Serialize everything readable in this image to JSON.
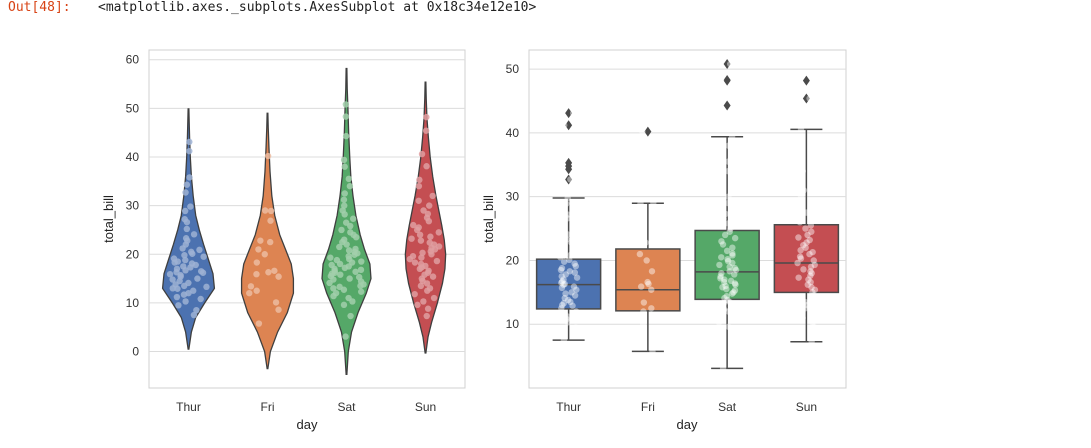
{
  "cell": {
    "prompt": "Out[48]:",
    "repr": "<matplotlib.axes._subplots.AxesSubplot at 0x18c34e12e10>"
  },
  "chart_data": [
    {
      "type": "violin",
      "title": "",
      "xlabel": "day",
      "ylabel": "total_bill",
      "categories": [
        "Thur",
        "Fri",
        "Sat",
        "Sun"
      ],
      "colors": [
        "#4c72b0",
        "#dd8452",
        "#55a868",
        "#c44e52"
      ],
      "ylim": [
        -7.5,
        62
      ],
      "yticks": [
        0,
        10,
        20,
        30,
        40,
        50,
        60
      ],
      "violins": [
        {
          "name": "Thur",
          "min": 0.5,
          "max": 49.9,
          "density": [
            [
              0.5,
              0.01
            ],
            [
              4,
              0.08
            ],
            [
              7,
              0.2
            ],
            [
              10,
              0.45
            ],
            [
              13,
              0.72
            ],
            [
              16,
              0.68
            ],
            [
              19,
              0.55
            ],
            [
              22,
              0.42
            ],
            [
              25,
              0.3
            ],
            [
              28,
              0.2
            ],
            [
              32,
              0.13
            ],
            [
              36,
              0.08
            ],
            [
              40,
              0.05
            ],
            [
              44,
              0.03
            ],
            [
              49.9,
              0.01
            ]
          ]
        },
        {
          "name": "Fri",
          "min": -3.5,
          "max": 49.0,
          "density": [
            [
              -3.5,
              0.01
            ],
            [
              0,
              0.08
            ],
            [
              4,
              0.28
            ],
            [
              8,
              0.55
            ],
            [
              12,
              0.72
            ],
            [
              15,
              0.72
            ],
            [
              18,
              0.66
            ],
            [
              21,
              0.5
            ],
            [
              24,
              0.34
            ],
            [
              28,
              0.2
            ],
            [
              32,
              0.12
            ],
            [
              37,
              0.07
            ],
            [
              42,
              0.04
            ],
            [
              46,
              0.02
            ],
            [
              49,
              0.01
            ]
          ]
        },
        {
          "name": "Sat",
          "min": -4.7,
          "max": 58.2,
          "density": [
            [
              -4.7,
              0.01
            ],
            [
              0,
              0.05
            ],
            [
              4,
              0.14
            ],
            [
              8,
              0.32
            ],
            [
              12,
              0.55
            ],
            [
              15,
              0.68
            ],
            [
              18,
              0.65
            ],
            [
              21,
              0.5
            ],
            [
              24,
              0.38
            ],
            [
              28,
              0.26
            ],
            [
              32,
              0.18
            ],
            [
              36,
              0.12
            ],
            [
              40,
              0.09
            ],
            [
              45,
              0.06
            ],
            [
              50,
              0.04
            ],
            [
              54,
              0.02
            ],
            [
              58.2,
              0.01
            ]
          ]
        },
        {
          "name": "Sun",
          "min": -0.3,
          "max": 55.4,
          "density": [
            [
              -0.3,
              0.01
            ],
            [
              3,
              0.07
            ],
            [
              6,
              0.17
            ],
            [
              10,
              0.33
            ],
            [
              14,
              0.47
            ],
            [
              17,
              0.54
            ],
            [
              20,
              0.56
            ],
            [
              23,
              0.52
            ],
            [
              26,
              0.45
            ],
            [
              29,
              0.37
            ],
            [
              32,
              0.29
            ],
            [
              36,
              0.2
            ],
            [
              40,
              0.13
            ],
            [
              44,
              0.08
            ],
            [
              48,
              0.04
            ],
            [
              52,
              0.02
            ],
            [
              55.4,
              0.01
            ]
          ]
        }
      ],
      "points": {
        "Thur": [
          7.5,
          8.5,
          9.5,
          10.3,
          10.8,
          11.2,
          11.7,
          12.0,
          12.5,
          12.9,
          13.0,
          13.3,
          13.5,
          13.8,
          14.1,
          14.5,
          14.8,
          15.0,
          15.4,
          15.7,
          15.9,
          16.2,
          16.3,
          16.5,
          16.7,
          17.0,
          17.3,
          17.5,
          17.8,
          18.1,
          18.3,
          18.5,
          18.8,
          19.1,
          19.5,
          19.8,
          20.1,
          20.5,
          20.9,
          21.2,
          22.0,
          22.8,
          23.3,
          24.1,
          25.2,
          26.6,
          27.2,
          28.9,
          29.8,
          32.7,
          34.3,
          35.8,
          41.2,
          43.1
        ],
        "Fri": [
          5.75,
          8.6,
          10.1,
          12.0,
          12.5,
          13.4,
          15.4,
          15.9,
          16.3,
          16.6,
          18.3,
          20.0,
          21.0,
          22.5,
          22.8,
          26.9,
          28.9,
          29.0,
          40.2
        ],
        "Sat": [
          3.07,
          7.3,
          9.6,
          10.3,
          11.0,
          11.4,
          12.0,
          12.3,
          12.7,
          13.0,
          13.3,
          13.5,
          13.8,
          14.1,
          14.4,
          14.8,
          15.0,
          15.3,
          15.5,
          15.8,
          16.0,
          16.2,
          16.4,
          16.6,
          16.8,
          17.0,
          17.2,
          17.5,
          17.8,
          18.0,
          18.3,
          18.5,
          18.8,
          19.0,
          19.3,
          19.6,
          19.9,
          20.2,
          20.5,
          20.8,
          21.1,
          21.5,
          22.0,
          22.5,
          23.0,
          23.5,
          24.0,
          24.5,
          25.0,
          25.8,
          26.5,
          27.3,
          28.2,
          29.0,
          30.0,
          31.2,
          32.5,
          34.0,
          35.5,
          38.0,
          39.4,
          44.3,
          48.3,
          50.8
        ],
        "Sun": [
          7.3,
          8.8,
          9.6,
          10.3,
          11.0,
          11.8,
          12.5,
          13.0,
          13.5,
          14.0,
          14.5,
          15.0,
          15.4,
          15.8,
          16.2,
          16.6,
          17.0,
          17.3,
          17.6,
          18.0,
          18.3,
          18.6,
          19.0,
          19.3,
          19.6,
          20.0,
          20.3,
          20.6,
          21.0,
          21.3,
          21.6,
          22.0,
          22.4,
          22.8,
          23.2,
          23.6,
          24.0,
          24.5,
          25.0,
          25.5,
          26.0,
          26.8,
          27.5,
          28.3,
          29.0,
          30.0,
          31.0,
          32.0,
          34.0,
          35.3,
          38.1,
          40.6,
          45.4,
          48.2
        ]
      }
    },
    {
      "type": "box",
      "title": "",
      "xlabel": "day",
      "ylabel": "total_bill",
      "categories": [
        "Thur",
        "Fri",
        "Sat",
        "Sun"
      ],
      "colors": [
        "#4c72b0",
        "#dd8452",
        "#55a868",
        "#c44e52"
      ],
      "ylim": [
        0,
        53
      ],
      "yticks": [
        10,
        20,
        30,
        40,
        50
      ],
      "boxes": [
        {
          "name": "Thur",
          "whisker_low": 7.5,
          "q1": 12.4,
          "median": 16.2,
          "q3": 20.2,
          "whisker_high": 29.8,
          "outliers": [
            32.7,
            34.3,
            34.8,
            35.3,
            41.2,
            43.1
          ]
        },
        {
          "name": "Fri",
          "whisker_low": 5.75,
          "q1": 12.1,
          "median": 15.4,
          "q3": 21.8,
          "whisker_high": 28.97,
          "outliers": [
            40.2
          ]
        },
        {
          "name": "Sat",
          "whisker_low": 3.07,
          "q1": 13.9,
          "median": 18.2,
          "q3": 24.7,
          "whisker_high": 39.4,
          "outliers": [
            44.3,
            48.2,
            48.3,
            50.8
          ]
        },
        {
          "name": "Sun",
          "whisker_low": 7.25,
          "q1": 14.99,
          "median": 19.6,
          "q3": 25.6,
          "whisker_high": 40.55,
          "outliers": [
            45.4,
            48.2
          ]
        }
      ]
    }
  ]
}
